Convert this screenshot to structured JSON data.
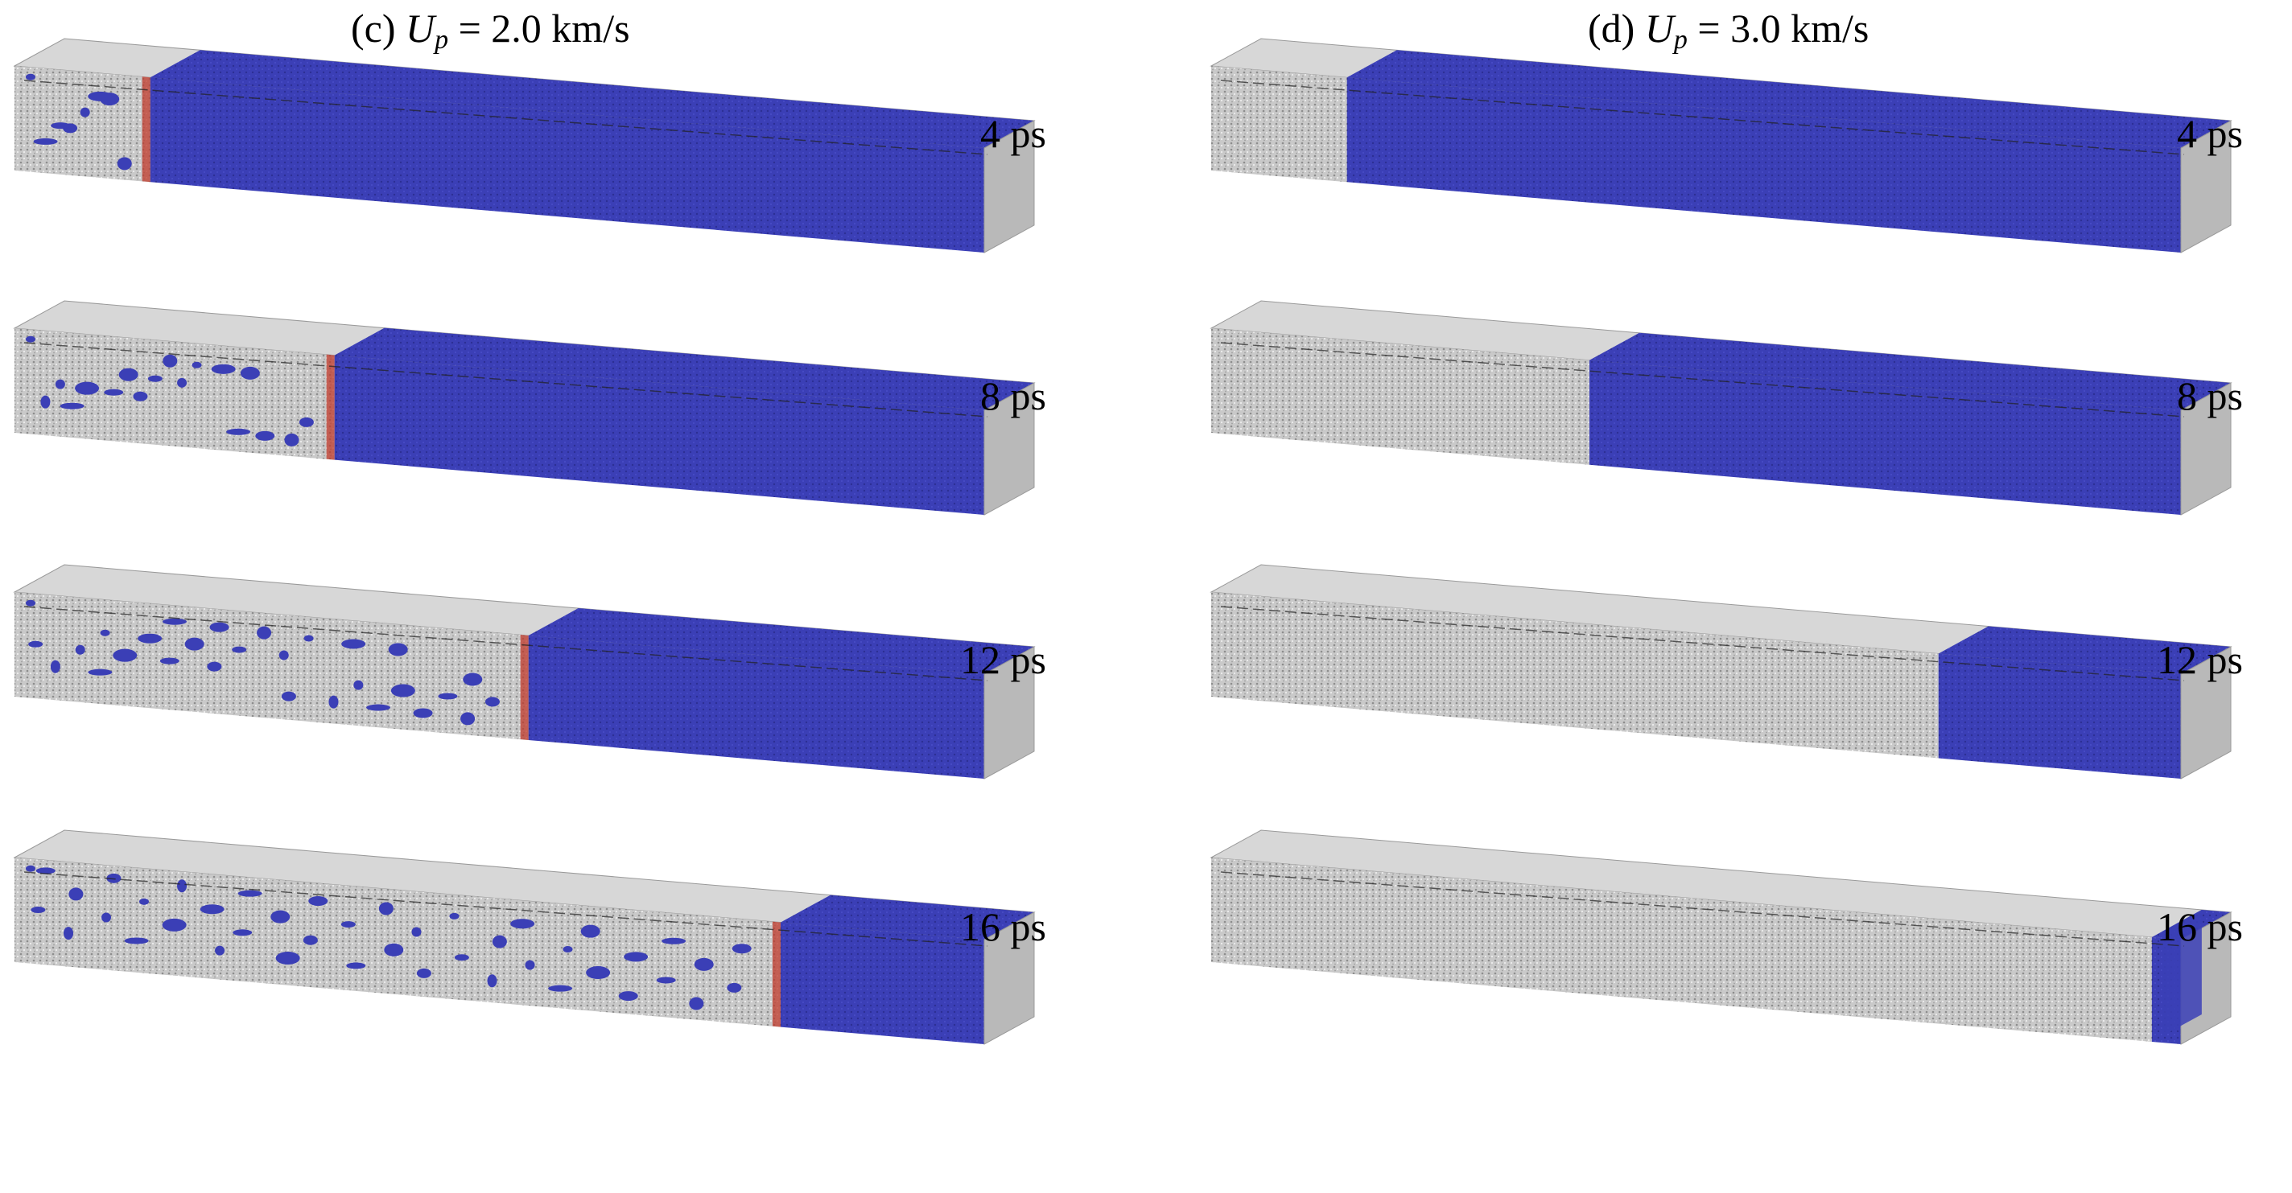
{
  "panels": [
    {
      "id": "c",
      "label_prefix": "(c)",
      "symbol": "U",
      "subscript": "p",
      "value_text": "= 2.0 km/s",
      "snapshots": [
        {
          "time": "4 ps",
          "shocked_fraction": 0.86
        },
        {
          "time": "8 ps",
          "shocked_fraction": 0.67
        },
        {
          "time": "12 ps",
          "shocked_fraction": 0.47
        },
        {
          "time": "16 ps",
          "shocked_fraction": 0.21
        }
      ]
    },
    {
      "id": "d",
      "label_prefix": "(d)",
      "symbol": "U",
      "subscript": "p",
      "value_text": "= 3.0 km/s",
      "snapshots": [
        {
          "time": "4 ps",
          "shocked_fraction": 0.86
        },
        {
          "time": "8 ps",
          "shocked_fraction": 0.61
        },
        {
          "time": "12 ps",
          "shocked_fraction": 0.25
        },
        {
          "time": "16 ps",
          "shocked_fraction": 0.03
        }
      ]
    }
  ],
  "colors": {
    "unshocked": "#c9c9c9",
    "shocked": "#3b3fb6",
    "interface": "#c0392b",
    "side_face": "#b9b9b9",
    "top_face": "#d7d7d7"
  }
}
